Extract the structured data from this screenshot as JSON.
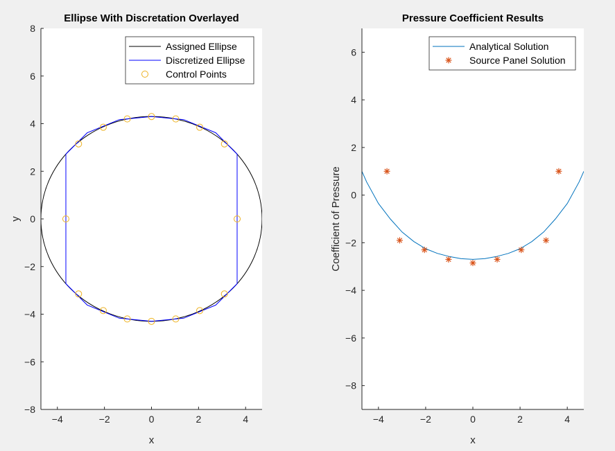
{
  "chart_data": [
    {
      "type": "line",
      "title": "Ellipse With Discretation Overlayed",
      "xlabel": "x",
      "ylabel": "y",
      "xlim": [
        -4.7,
        4.7
      ],
      "ylim": [
        -8,
        8
      ],
      "xticks": [
        -4,
        -2,
        0,
        2,
        4
      ],
      "yticks": [
        -8,
        -6,
        -4,
        -2,
        0,
        2,
        4,
        6,
        8
      ],
      "grid": false,
      "legend_location": "top-right",
      "series": [
        {
          "name": "Assigned Ellipse",
          "kind": "ellipse",
          "semi_axis_x": 4.7,
          "semi_axis_y": 4.3,
          "color": "#000000"
        },
        {
          "name": "Discretized Ellipse",
          "kind": "polyline",
          "color": "#0000ff",
          "x": [
            3.64,
            3.64,
            2.73,
            1.37,
            0,
            -1.37,
            -2.73,
            -3.64,
            -3.64,
            -2.73,
            -1.37,
            0,
            1.37,
            2.73,
            3.64
          ],
          "y": [
            -2.72,
            2.72,
            3.62,
            4.17,
            4.3,
            4.17,
            3.62,
            2.72,
            -2.72,
            -3.62,
            -4.17,
            -4.3,
            -4.17,
            -3.62,
            -2.72
          ]
        },
        {
          "name": "Control Points",
          "kind": "markers",
          "marker": "circle",
          "color": "#edb120",
          "x": [
            3.64,
            3.1,
            2.05,
            1.03,
            0,
            -1.03,
            -2.05,
            -3.1,
            -3.64,
            -3.1,
            -2.05,
            -1.03,
            0,
            1.03,
            2.05,
            3.1
          ],
          "y": [
            0,
            3.15,
            3.85,
            4.2,
            4.3,
            4.2,
            3.85,
            3.15,
            0,
            -3.15,
            -3.85,
            -4.2,
            -4.3,
            -4.2,
            -3.85,
            -3.15
          ]
        }
      ]
    },
    {
      "type": "line",
      "title": "Pressure Coefficient Results",
      "xlabel": "x",
      "ylabel": "Coefficient of Pressure",
      "xlim": [
        -4.7,
        4.7
      ],
      "ylim": [
        -9,
        7
      ],
      "xticks": [
        -4,
        -2,
        0,
        2,
        4
      ],
      "yticks": [
        -8,
        -6,
        -4,
        -2,
        0,
        2,
        4,
        6
      ],
      "grid": false,
      "legend_location": "top-right",
      "series": [
        {
          "name": "Analytical Solution",
          "kind": "curve",
          "color": "#0072bd",
          "x": [
            -4.7,
            -4.5,
            -4.0,
            -3.5,
            -3.0,
            -2.5,
            -2.0,
            -1.5,
            -1.0,
            -0.5,
            0,
            0.5,
            1.0,
            1.5,
            2.0,
            2.5,
            3.0,
            3.5,
            4.0,
            4.5,
            4.7
          ],
          "y": [
            1.0,
            0.55,
            -0.35,
            -1.0,
            -1.55,
            -1.95,
            -2.25,
            -2.45,
            -2.58,
            -2.67,
            -2.7,
            -2.67,
            -2.58,
            -2.45,
            -2.25,
            -1.95,
            -1.55,
            -1.0,
            -0.35,
            0.55,
            1.0
          ]
        },
        {
          "name": "Source Panel Solution",
          "kind": "markers",
          "marker": "star",
          "color": "#d95319",
          "x": [
            -3.64,
            -3.1,
            -2.05,
            -1.03,
            0,
            1.03,
            2.05,
            3.1,
            3.64
          ],
          "y": [
            1.0,
            -1.9,
            -2.3,
            -2.7,
            -2.85,
            -2.7,
            -2.3,
            -1.9,
            1.0
          ]
        }
      ]
    }
  ]
}
